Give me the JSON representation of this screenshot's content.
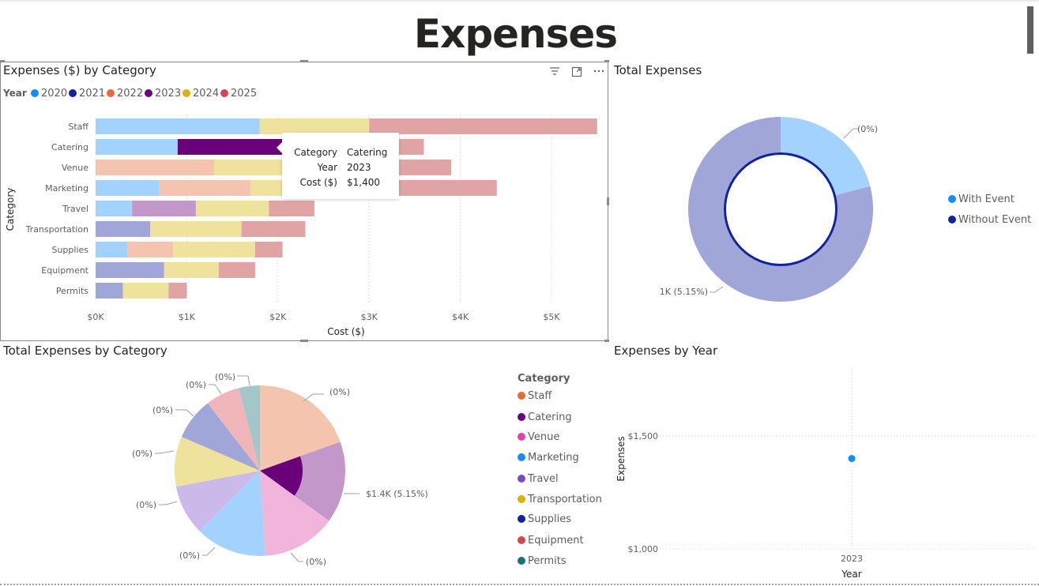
{
  "page": {
    "title": "Expenses"
  },
  "bar_visual": {
    "title": "Expenses ($) by Category",
    "legend_title": "Year",
    "icons": {
      "filter": "filter-icon",
      "focus": "focus-mode-icon",
      "more": "more-options-icon"
    }
  },
  "tooltip": {
    "rows": [
      {
        "key": "Category",
        "value": "Catering"
      },
      {
        "key": "Year",
        "value": "2023"
      },
      {
        "key": "Cost ($)",
        "value": "$1,400"
      }
    ]
  },
  "donut_visual": {
    "title": "Total Expenses",
    "labels": {
      "small": "(0%)",
      "large": "1K (5.15%)"
    },
    "legend": [
      {
        "label": "With Event",
        "color": "#118DFF"
      },
      {
        "label": "Without Event",
        "color": "#12239E"
      }
    ]
  },
  "pie_visual": {
    "title": "Total Expenses by Category",
    "legend_title": "Category",
    "legend": [
      {
        "label": "Staff",
        "color": "#E66C37"
      },
      {
        "label": "Catering",
        "color": "#6B007B"
      },
      {
        "label": "Venue",
        "color": "#E044A7"
      },
      {
        "label": "Marketing",
        "color": "#118DFF"
      },
      {
        "label": "Travel",
        "color": "#744EC2"
      },
      {
        "label": "Transportation",
        "color": "#D9B300"
      },
      {
        "label": "Supplies",
        "color": "#12239E"
      },
      {
        "label": "Equipment",
        "color": "#D64550"
      },
      {
        "label": "Permits",
        "color": "#197278"
      }
    ]
  },
  "scatter_visual": {
    "title": "Expenses by Year"
  },
  "chart_data": [
    {
      "type": "bar",
      "orientation": "horizontal",
      "stacked": true,
      "title": "Expenses ($) by Category",
      "xlabel": "Cost ($)",
      "ylabel": "Category",
      "xlim": [
        0,
        5500
      ],
      "x_ticks": [
        "$0K",
        "$1K",
        "$2K",
        "$3K",
        "$4K",
        "$5K"
      ],
      "x_tick_values": [
        0,
        1000,
        2000,
        3000,
        4000,
        5000
      ],
      "legend_position": "top-left",
      "categories": [
        "Staff",
        "Catering",
        "Venue",
        "Marketing",
        "Travel",
        "Transportation",
        "Supplies",
        "Equipment",
        "Permits"
      ],
      "series": [
        {
          "name": "2020",
          "color": "#118DFF",
          "faded": "#A3D2FF",
          "values": [
            1800,
            900,
            0,
            700,
            400,
            0,
            350,
            0,
            0
          ]
        },
        {
          "name": "2021",
          "color": "#12239E",
          "faded": "#A0A7D8",
          "values": [
            0,
            0,
            0,
            0,
            0,
            600,
            0,
            750,
            300
          ]
        },
        {
          "name": "2022",
          "color": "#E66C37",
          "faded": "#F5C4AF",
          "values": [
            0,
            0,
            1300,
            1000,
            0,
            0,
            500,
            0,
            0
          ]
        },
        {
          "name": "2023",
          "color": "#6B007B",
          "faded": "#C497CA",
          "values": [
            0,
            1400,
            0,
            0,
            700,
            0,
            0,
            0,
            0
          ]
        },
        {
          "name": "2024",
          "color": "#D9B300",
          "faded": "#EFE29C",
          "values": [
            1200,
            0,
            1100,
            1100,
            800,
            1000,
            900,
            600,
            500
          ]
        },
        {
          "name": "2025",
          "color": "#D64550",
          "faded": "#E0A4A4",
          "values": [
            2500,
            1300,
            1500,
            1600,
            500,
            700,
            300,
            400,
            200
          ]
        }
      ],
      "highlight": {
        "category": "Catering",
        "series": "2023"
      }
    },
    {
      "type": "pie",
      "variant": "donut",
      "title": "Total Expenses",
      "slices": [
        {
          "name": "With Event",
          "value": 21,
          "color": "#A3D2FF"
        },
        {
          "name": "Without Event",
          "value": 79,
          "color": "#A0A7D8"
        }
      ],
      "data_labels": [
        "(0%)",
        "1K (5.15%)"
      ],
      "legend_position": "right"
    },
    {
      "type": "pie",
      "title": "Total Expenses by Category",
      "slices": [
        {
          "name": "Staff",
          "value": 19.5,
          "color": "#F5C4AF",
          "label": "(0%)"
        },
        {
          "name": "Catering",
          "value": 15.5,
          "color": "#C497CA",
          "label": "$1.4K (5.15%)"
        },
        {
          "name": "Venue",
          "value": 14,
          "color": "#F1B4DB",
          "label": "(0%)"
        },
        {
          "name": "Marketing",
          "value": 13.5,
          "color": "#A3D2FF",
          "label": "(0%)"
        },
        {
          "name": "Travel",
          "value": 9.5,
          "color": "#CAB9E9",
          "label": "(0%)"
        },
        {
          "name": "Transportation",
          "value": 9.5,
          "color": "#EFE29C",
          "label": "(0%)"
        },
        {
          "name": "Supplies",
          "value": 8,
          "color": "#A0A7D8",
          "label": "(0%)"
        },
        {
          "name": "Equipment",
          "value": 6.5,
          "color": "#EFB5B9",
          "label": "(0%)"
        },
        {
          "name": "Permits",
          "value": 4,
          "color": "#A3C7C9",
          "label": "(0%)"
        }
      ],
      "highlight": {
        "slice": "Catering",
        "portion": 0.5,
        "color": "#6B007B"
      },
      "legend_position": "right"
    },
    {
      "type": "scatter",
      "title": "Expenses by Year",
      "xlabel": "Year",
      "ylabel": "Expenses",
      "x_ticks": [
        "2023"
      ],
      "y_ticks": [
        "$1,000",
        "$1,500"
      ],
      "y_tick_values": [
        1000,
        1500
      ],
      "ylim": [
        1000,
        1500
      ],
      "points": [
        {
          "x": "2023",
          "y": 1400,
          "color": "#118DFF"
        }
      ]
    }
  ]
}
